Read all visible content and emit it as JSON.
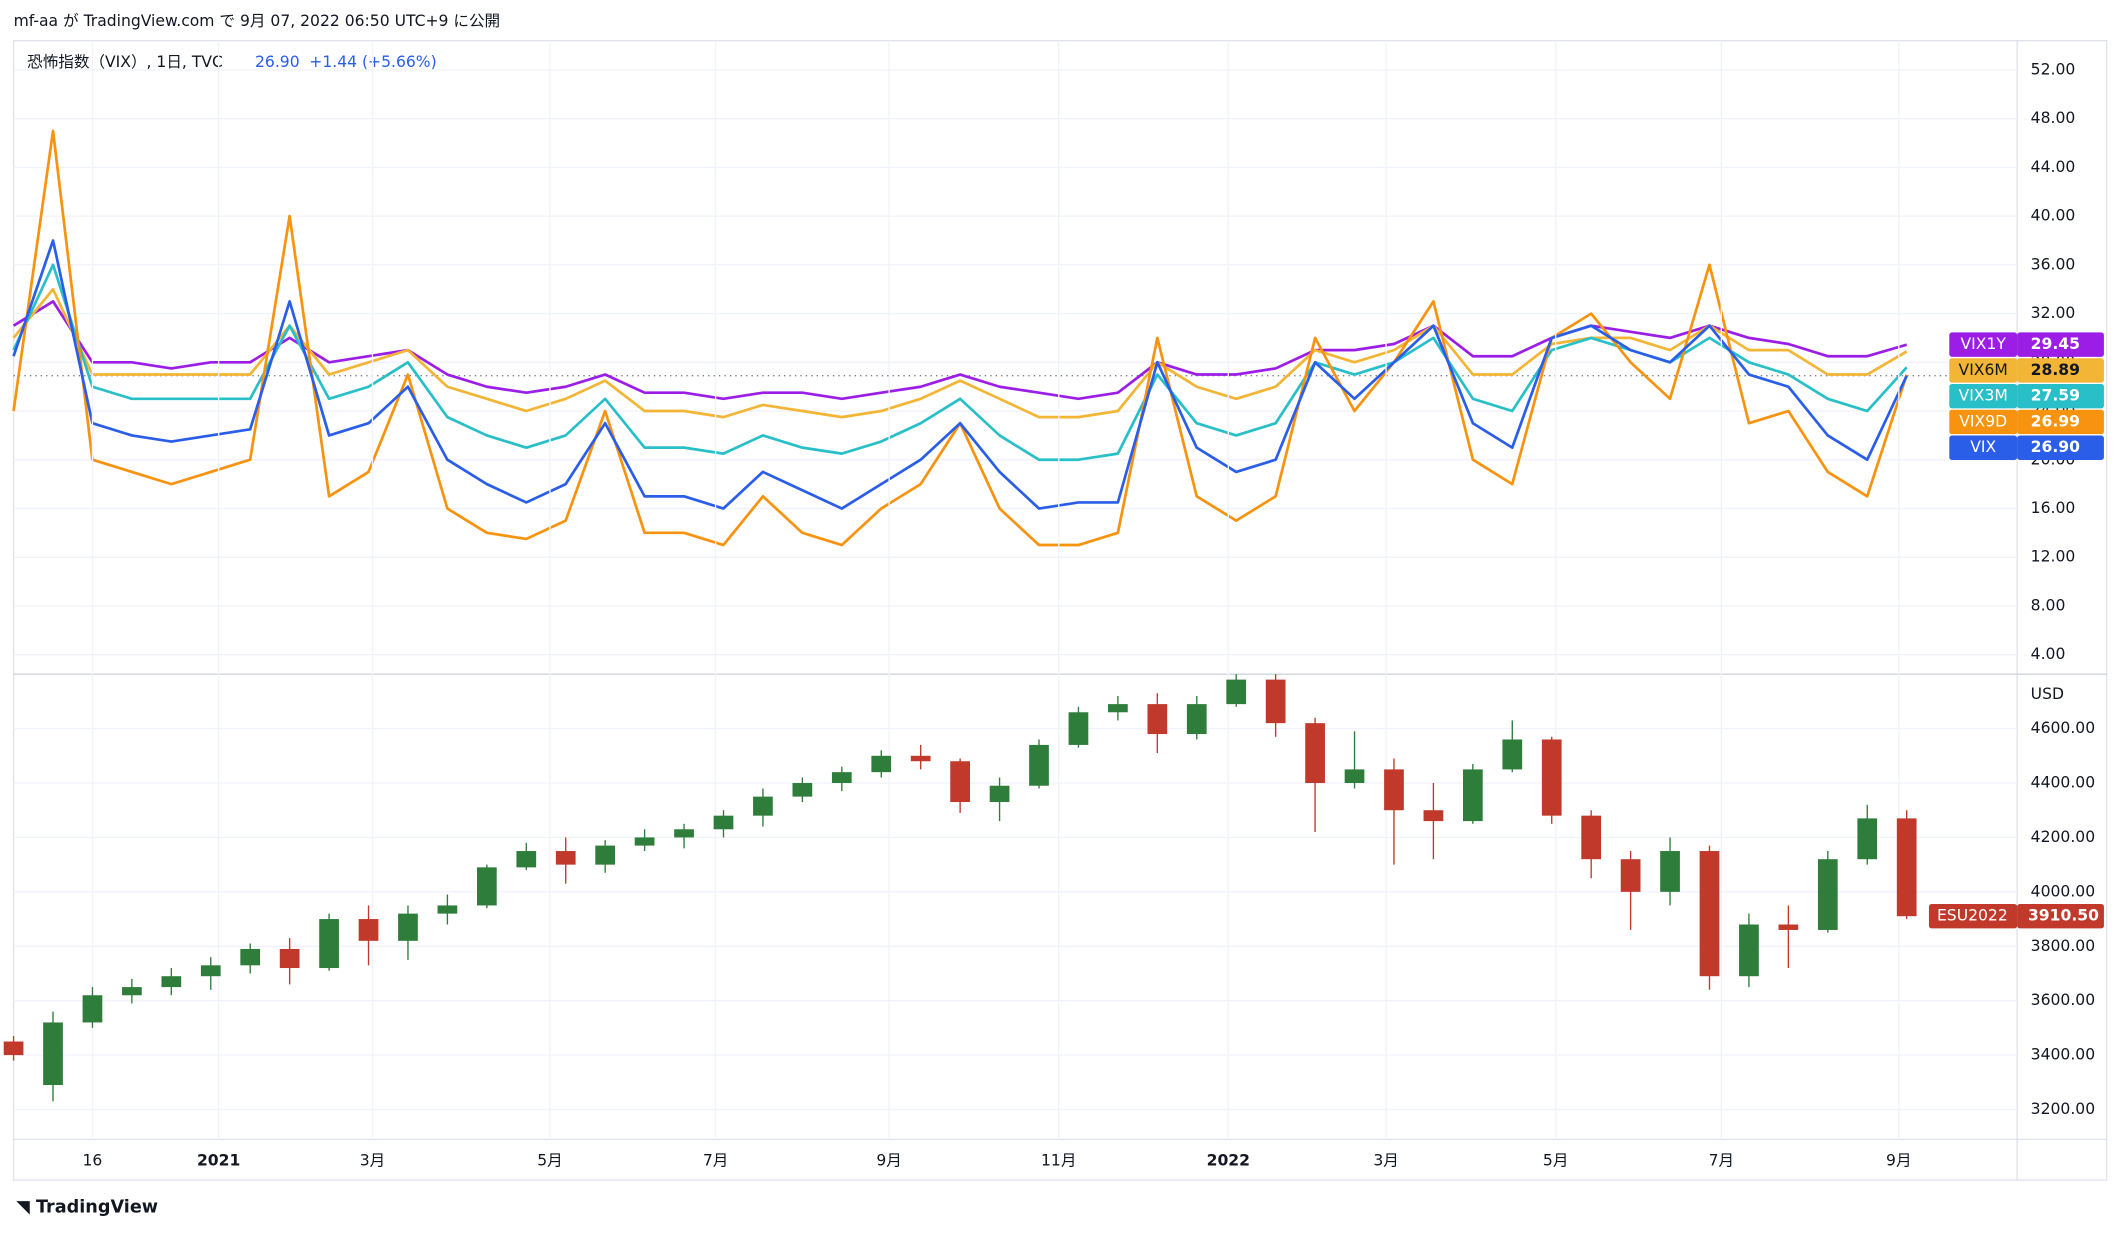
{
  "header": "mf-aa が TradingView.com で 9月 07, 2022 06:50 UTC+9 に公開",
  "footer": "TradingView",
  "chart_data": [
    {
      "type": "line",
      "legend": {
        "title": "恐怖指数（VIX）, 1日, TVC",
        "last": "26.90",
        "change": "+1.44 (+5.66%)"
      },
      "xlim": [
        0,
        50.8
      ],
      "ylim": [
        2.4,
        54.4
      ],
      "yticks": [
        {
          "value": 4,
          "label": "4.00"
        },
        {
          "value": 8,
          "label": "8.00"
        },
        {
          "value": 12,
          "label": "12.00"
        },
        {
          "value": 16,
          "label": "16.00"
        },
        {
          "value": 20,
          "label": "20.00"
        },
        {
          "value": 24,
          "label": "24.00"
        },
        {
          "value": 28,
          "label": "28.00"
        },
        {
          "value": 32,
          "label": "32.00"
        },
        {
          "value": 36,
          "label": "36.00"
        },
        {
          "value": 40,
          "label": "40.00"
        },
        {
          "value": 44,
          "label": "44.00"
        },
        {
          "value": 48,
          "label": "48.00"
        },
        {
          "value": 52,
          "label": "52.00"
        }
      ],
      "grid": true,
      "series": [
        {
          "name": "VIX1Y",
          "color": "#9c1ee6",
          "last_label": "29.45",
          "values": [
            31,
            33,
            28,
            28,
            27.5,
            28,
            28,
            30,
            28,
            28.5,
            29,
            27,
            26,
            25.5,
            26,
            27,
            25.5,
            25.5,
            25,
            25.5,
            25.5,
            25,
            25.5,
            26,
            27,
            26,
            25.5,
            25,
            25.5,
            28,
            27,
            27,
            27.5,
            29,
            29,
            29.5,
            31,
            28.5,
            28.5,
            30,
            31,
            30.5,
            30,
            31,
            30,
            29.5,
            28.5,
            28.5,
            29.45
          ]
        },
        {
          "name": "VIX6M",
          "color": "#f2b535",
          "last_label": "28.89",
          "values": [
            30,
            34,
            27,
            27,
            27,
            27,
            27,
            31,
            27,
            28,
            29,
            26,
            25,
            24,
            25,
            26.5,
            24,
            24,
            23.5,
            24.5,
            24,
            23.5,
            24,
            25,
            26.5,
            25,
            23.5,
            23.5,
            24,
            28,
            26,
            25,
            26,
            29,
            28,
            29,
            31,
            27,
            27,
            29.5,
            30,
            30,
            29,
            31,
            29,
            29,
            27,
            27,
            28.89
          ]
        },
        {
          "name": "VIX3M",
          "color": "#28bfc8",
          "last_label": "27.59",
          "values": [
            29,
            36,
            26,
            25,
            25,
            25,
            25,
            31,
            25,
            26,
            28,
            23.5,
            22,
            21,
            22,
            25,
            21,
            21,
            20.5,
            22,
            21,
            20.5,
            21.5,
            23,
            25,
            22,
            20,
            20,
            20.5,
            27,
            23,
            22,
            23,
            28,
            27,
            28,
            30,
            25,
            24,
            29,
            30,
            29,
            28,
            30,
            28,
            27,
            25,
            24,
            27.59
          ]
        },
        {
          "name": "VIX9D",
          "color": "#f7930f",
          "last_label": "26.99",
          "values": [
            24,
            47,
            20,
            19,
            18,
            19,
            20,
            40,
            17,
            19,
            27,
            16,
            14,
            13.5,
            15,
            24,
            14,
            14,
            13,
            17,
            14,
            13,
            16,
            18,
            23,
            16,
            13,
            13,
            14,
            30,
            17,
            15,
            17,
            30,
            24,
            28,
            33,
            20,
            18,
            30,
            32,
            28,
            25,
            36,
            23,
            24,
            19,
            17,
            26.99
          ]
        },
        {
          "name": "VIX",
          "color": "#2a5ee8",
          "last_label": "26.90",
          "values": [
            28.5,
            38,
            23,
            22,
            21.5,
            22,
            22.5,
            33,
            22,
            23,
            26,
            20,
            18,
            16.5,
            18,
            23,
            17,
            17,
            16,
            19,
            17.5,
            16,
            18,
            20,
            23,
            19,
            16,
            16.5,
            16.5,
            28,
            21,
            19,
            20,
            28,
            25,
            28,
            31,
            23,
            21,
            30,
            31,
            29,
            28,
            31,
            27,
            26,
            22,
            20,
            26.9
          ]
        }
      ]
    },
    {
      "type": "candlestick",
      "name": "ESU2022",
      "last_label": "3910.50",
      "unit": "USD",
      "up_color": "#2f7d3a",
      "down_color": "#c0392b",
      "xlim": [
        0,
        50.8
      ],
      "ylim": [
        3090,
        4800
      ],
      "yticks": [
        {
          "value": 3200,
          "label": "3200.00"
        },
        {
          "value": 3400,
          "label": "3400.00"
        },
        {
          "value": 3600,
          "label": "3600.00"
        },
        {
          "value": 3800,
          "label": "3800.00"
        },
        {
          "value": 4000,
          "label": "4000.00"
        },
        {
          "value": 4200,
          "label": "4200.00"
        },
        {
          "value": 4400,
          "label": "4400.00"
        },
        {
          "value": 4600,
          "label": "4600.00"
        }
      ],
      "xticks": [
        {
          "value": 2.0,
          "label": "16"
        },
        {
          "value": 5.2,
          "label": "2021"
        },
        {
          "value": 9.1,
          "label": "3月"
        },
        {
          "value": 13.6,
          "label": "5月"
        },
        {
          "value": 17.8,
          "label": "7月"
        },
        {
          "value": 22.2,
          "label": "9月"
        },
        {
          "value": 26.5,
          "label": "11月"
        },
        {
          "value": 30.8,
          "label": "2022"
        },
        {
          "value": 34.8,
          "label": "3月"
        },
        {
          "value": 39.1,
          "label": "5月"
        },
        {
          "value": 43.3,
          "label": "7月"
        },
        {
          "value": 47.8,
          "label": "9月"
        }
      ],
      "grid": true,
      "ohlc": [
        [
          3450,
          3470,
          3380,
          3400
        ],
        [
          3290,
          3560,
          3230,
          3520
        ],
        [
          3520,
          3650,
          3500,
          3620
        ],
        [
          3620,
          3680,
          3590,
          3650
        ],
        [
          3650,
          3720,
          3620,
          3690
        ],
        [
          3690,
          3760,
          3640,
          3730
        ],
        [
          3730,
          3810,
          3700,
          3790
        ],
        [
          3790,
          3830,
          3660,
          3720
        ],
        [
          3720,
          3920,
          3710,
          3900
        ],
        [
          3900,
          3950,
          3730,
          3820
        ],
        [
          3820,
          3950,
          3750,
          3920
        ],
        [
          3920,
          3990,
          3880,
          3950
        ],
        [
          3950,
          4100,
          3940,
          4090
        ],
        [
          4090,
          4180,
          4080,
          4150
        ],
        [
          4150,
          4200,
          4030,
          4100
        ],
        [
          4100,
          4190,
          4070,
          4170
        ],
        [
          4170,
          4230,
          4150,
          4200
        ],
        [
          4200,
          4250,
          4160,
          4230
        ],
        [
          4230,
          4300,
          4200,
          4280
        ],
        [
          4280,
          4380,
          4240,
          4350
        ],
        [
          4350,
          4420,
          4330,
          4400
        ],
        [
          4400,
          4460,
          4370,
          4440
        ],
        [
          4440,
          4520,
          4420,
          4500
        ],
        [
          4500,
          4540,
          4450,
          4480
        ],
        [
          4480,
          4490,
          4290,
          4330
        ],
        [
          4330,
          4420,
          4260,
          4390
        ],
        [
          4390,
          4560,
          4380,
          4540
        ],
        [
          4540,
          4680,
          4530,
          4660
        ],
        [
          4660,
          4720,
          4630,
          4690
        ],
        [
          4690,
          4730,
          4510,
          4580
        ],
        [
          4580,
          4720,
          4560,
          4690
        ],
        [
          4690,
          4800,
          4680,
          4780
        ],
        [
          4780,
          4800,
          4570,
          4620
        ],
        [
          4620,
          4640,
          4220,
          4400
        ],
        [
          4400,
          4590,
          4380,
          4450
        ],
        [
          4450,
          4490,
          4100,
          4300
        ],
        [
          4300,
          4400,
          4120,
          4260
        ],
        [
          4260,
          4470,
          4250,
          4450
        ],
        [
          4450,
          4630,
          4440,
          4560
        ],
        [
          4560,
          4570,
          4250,
          4280
        ],
        [
          4280,
          4300,
          4050,
          4120
        ],
        [
          4120,
          4150,
          3860,
          4000
        ],
        [
          4000,
          4200,
          3950,
          4150
        ],
        [
          4150,
          4170,
          3640,
          3690
        ],
        [
          3690,
          3920,
          3650,
          3880
        ],
        [
          3880,
          3950,
          3720,
          3860
        ],
        [
          3860,
          4150,
          3850,
          4120
        ],
        [
          4120,
          4320,
          4100,
          4270
        ],
        [
          4270,
          4300,
          3900,
          3910.5
        ]
      ]
    }
  ]
}
